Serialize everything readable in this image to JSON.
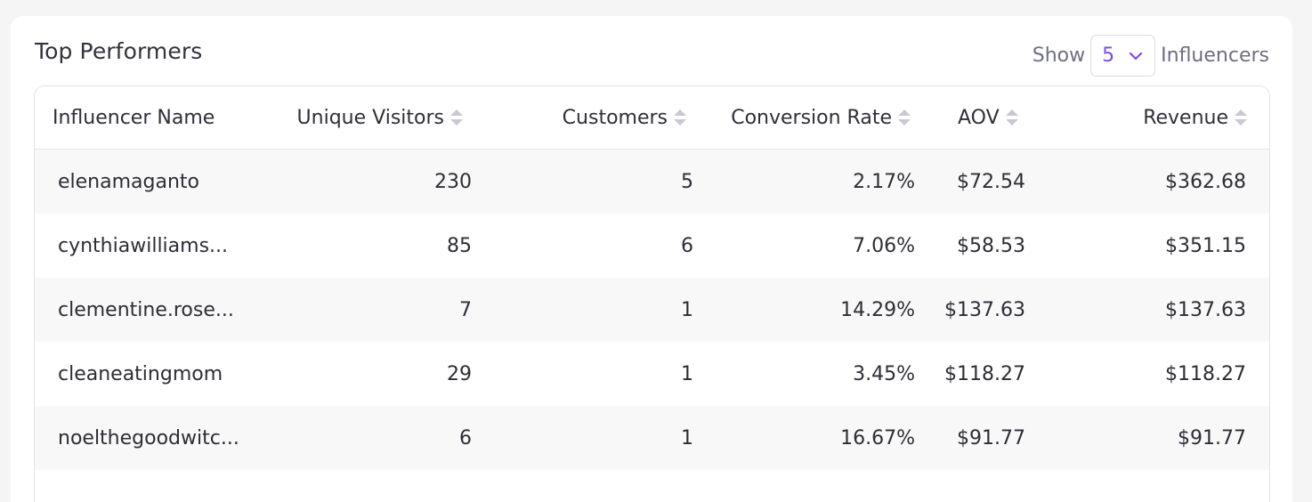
{
  "card": {
    "title": "Top Performers",
    "show_prefix": "Show",
    "show_value": "5",
    "show_suffix": "Influencers"
  },
  "table": {
    "headers": {
      "name": "Influencer Name",
      "unique_visitors": "Unique Visitors",
      "customers": "Customers",
      "conversion_rate": "Conversion Rate",
      "aov": "AOV",
      "revenue": "Revenue"
    },
    "rows": [
      {
        "name": "elenamaganto",
        "unique_visitors": "230",
        "customers": "5",
        "conversion_rate": "2.17%",
        "aov": "$72.54",
        "revenue": "$362.68"
      },
      {
        "name": "cynthiawilliams...",
        "unique_visitors": "85",
        "customers": "6",
        "conversion_rate": "7.06%",
        "aov": "$58.53",
        "revenue": "$351.15"
      },
      {
        "name": "clementine.rose...",
        "unique_visitors": "7",
        "customers": "1",
        "conversion_rate": "14.29%",
        "aov": "$137.63",
        "revenue": "$137.63"
      },
      {
        "name": "cleaneatingmom",
        "unique_visitors": "29",
        "customers": "1",
        "conversion_rate": "3.45%",
        "aov": "$118.27",
        "revenue": "$118.27"
      },
      {
        "name": "noelthegoodwitc...",
        "unique_visitors": "6",
        "customers": "1",
        "conversion_rate": "16.67%",
        "aov": "$91.77",
        "revenue": "$91.77"
      }
    ]
  },
  "colors": {
    "accent": "#7c4ddf",
    "row_shade": "#f8f8f9",
    "sort_icon": "#c9c9d1"
  },
  "icons": {
    "select": "chevron-down-icon",
    "sort": "sort-icon"
  }
}
